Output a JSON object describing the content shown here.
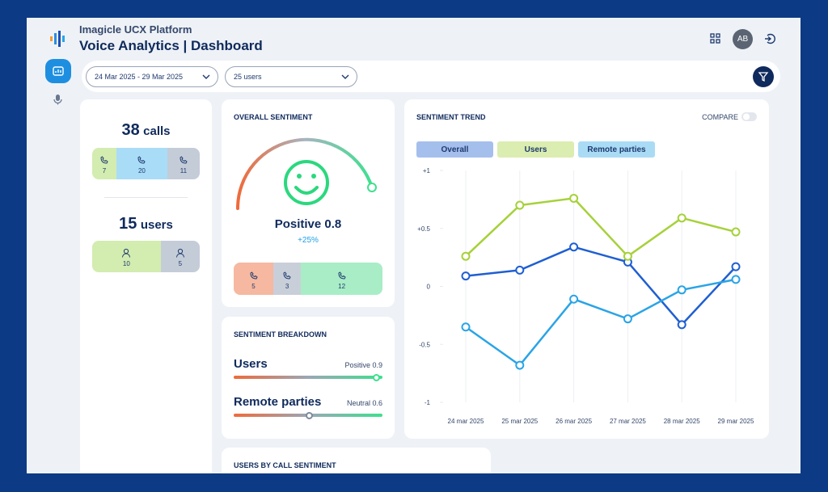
{
  "header": {
    "platform": "Imagicle UCX Platform",
    "title": "Voice Analytics | Dashboard",
    "avatar": "AB"
  },
  "filters": {
    "date_range": "24 Mar 2025 - 29 Mar 2025",
    "users": "25 users"
  },
  "calls": {
    "count": 38,
    "label": "calls",
    "segments": [
      7,
      20,
      11
    ]
  },
  "users": {
    "count": 15,
    "label": "users",
    "segments": [
      10,
      5
    ]
  },
  "overall_sentiment": {
    "title": "OVERALL SENTIMENT",
    "label": "Positive",
    "score": 0.8,
    "change": "+25%",
    "segments": [
      5,
      3,
      12
    ]
  },
  "sentiment_breakdown": {
    "title": "SENTIMENT BREAKDOWN",
    "rows": [
      {
        "name": "Users",
        "label": "Positive",
        "score": 0.9
      },
      {
        "name": "Remote parties",
        "label": "Neutral",
        "score": 0.6
      }
    ]
  },
  "users_by_call_sentiment": {
    "title": "USERS BY CALL SENTIMENT"
  },
  "chart_data": {
    "type": "line",
    "title": "SENTIMENT TREND",
    "compare_label": "COMPARE",
    "categories": [
      "24 mar 2025",
      "25 mar 2025",
      "26 mar 2025",
      "27 mar 2025",
      "28 mar 2025",
      "29 mar 2025"
    ],
    "series": [
      {
        "name": "Overall",
        "color": "#1f5fd1",
        "values": [
          0.09,
          0.14,
          0.34,
          0.21,
          -0.33,
          0.17
        ]
      },
      {
        "name": "Users",
        "color": "#a6d13a",
        "values": [
          0.26,
          0.7,
          0.76,
          0.26,
          0.59,
          0.47
        ]
      },
      {
        "name": "Remote parties",
        "color": "#2aa4e6",
        "values": [
          -0.35,
          -0.68,
          -0.11,
          -0.28,
          -0.03,
          0.06
        ]
      }
    ],
    "ylim": [
      -1,
      1
    ],
    "yticks": [
      {
        "value": 1,
        "label": "+1"
      },
      {
        "value": 0.5,
        "label": "+0.5"
      },
      0,
      -0.5,
      -1
    ],
    "grid": true
  }
}
